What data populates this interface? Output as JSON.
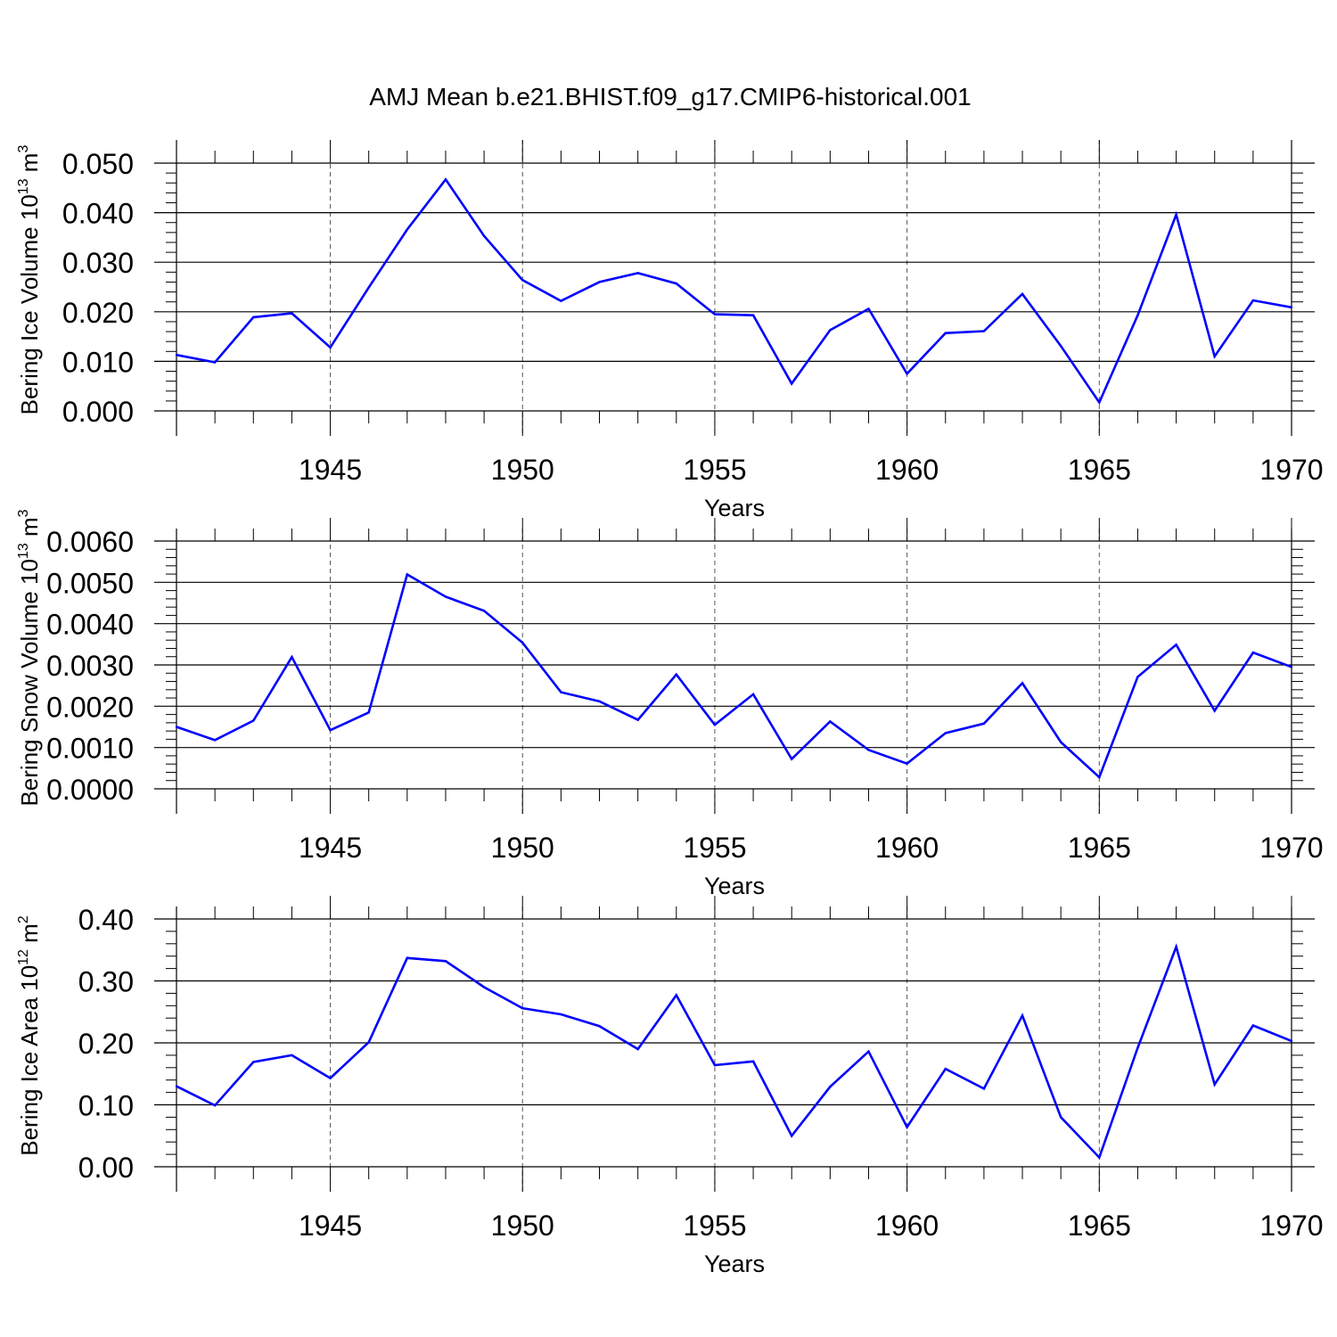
{
  "title": "AMJ Mean b.e21.BHIST.f09_g17.CMIP6-historical.001",
  "line_color": "#0000ff",
  "chart_data": [
    {
      "type": "line",
      "ylabel": "Bering Ice Volume 10",
      "ylabel_exp": "13",
      "ylabel_unit": "m",
      "ylabel_unit_exp": "3",
      "xlabel": "Years",
      "xlim": [
        1941,
        1970
      ],
      "ylim": [
        0.0,
        0.05
      ],
      "yticks": [
        "0.000",
        "0.010",
        "0.020",
        "0.030",
        "0.040",
        "0.050"
      ],
      "xticks": [
        "1945",
        "1950",
        "1955",
        "1960",
        "1965",
        "1970"
      ],
      "x": [
        1941,
        1942,
        1943,
        1944,
        1945,
        1946,
        1947,
        1948,
        1949,
        1950,
        1951,
        1952,
        1953,
        1954,
        1955,
        1956,
        1957,
        1958,
        1959,
        1960,
        1961,
        1962,
        1963,
        1964,
        1965,
        1966,
        1967,
        1968,
        1969,
        1970
      ],
      "values": [
        0.0113,
        0.0098,
        0.0189,
        0.0197,
        0.0128,
        0.0249,
        0.0366,
        0.0467,
        0.0353,
        0.0264,
        0.0222,
        0.026,
        0.0278,
        0.0257,
        0.0195,
        0.0193,
        0.0055,
        0.0163,
        0.0206,
        0.0075,
        0.0157,
        0.0161,
        0.0236,
        0.0131,
        0.0017,
        0.0193,
        0.0396,
        0.011,
        0.0223,
        0.0209
      ]
    },
    {
      "type": "line",
      "ylabel": "Bering Snow Volume 10",
      "ylabel_exp": "13",
      "ylabel_unit": "m",
      "ylabel_unit_exp": "3",
      "xlabel": "Years",
      "xlim": [
        1941,
        1970
      ],
      "ylim": [
        0.0,
        0.006
      ],
      "yticks": [
        "0.0000",
        "0.0010",
        "0.0020",
        "0.0030",
        "0.0040",
        "0.0050",
        "0.0060"
      ],
      "xticks": [
        "1945",
        "1950",
        "1955",
        "1960",
        "1965",
        "1970"
      ],
      "x": [
        1941,
        1942,
        1943,
        1944,
        1945,
        1946,
        1947,
        1948,
        1949,
        1950,
        1951,
        1952,
        1953,
        1954,
        1955,
        1956,
        1957,
        1958,
        1959,
        1960,
        1961,
        1962,
        1963,
        1964,
        1965,
        1966,
        1967,
        1968,
        1969,
        1970
      ],
      "values": [
        0.0015,
        0.00118,
        0.00165,
        0.00319,
        0.00142,
        0.00185,
        0.00519,
        0.00465,
        0.00431,
        0.00354,
        0.00234,
        0.00212,
        0.00167,
        0.00277,
        0.00155,
        0.00229,
        0.00072,
        0.00163,
        0.00094,
        0.00061,
        0.00135,
        0.00158,
        0.00256,
        0.00113,
        0.00028,
        0.00271,
        0.00349,
        0.00189,
        0.0033,
        0.00295
      ]
    },
    {
      "type": "line",
      "ylabel": "Bering Ice Area 10",
      "ylabel_exp": "12",
      "ylabel_unit": "m",
      "ylabel_unit_exp": "2",
      "xlabel": "Years",
      "xlim": [
        1941,
        1970
      ],
      "ylim": [
        0.0,
        0.4
      ],
      "yticks": [
        "0.00",
        "0.10",
        "0.20",
        "0.30",
        "0.40"
      ],
      "xticks": [
        "1945",
        "1950",
        "1955",
        "1960",
        "1965",
        "1970"
      ],
      "x": [
        1941,
        1942,
        1943,
        1944,
        1945,
        1946,
        1947,
        1948,
        1949,
        1950,
        1951,
        1952,
        1953,
        1954,
        1955,
        1956,
        1957,
        1958,
        1959,
        1960,
        1961,
        1962,
        1963,
        1964,
        1965,
        1966,
        1967,
        1968,
        1969,
        1970
      ],
      "values": [
        0.13,
        0.099,
        0.169,
        0.18,
        0.143,
        0.201,
        0.337,
        0.332,
        0.29,
        0.256,
        0.246,
        0.227,
        0.19,
        0.277,
        0.164,
        0.17,
        0.05,
        0.129,
        0.186,
        0.064,
        0.158,
        0.126,
        0.244,
        0.08,
        0.015,
        0.192,
        0.355,
        0.133,
        0.228,
        0.203
      ]
    }
  ]
}
